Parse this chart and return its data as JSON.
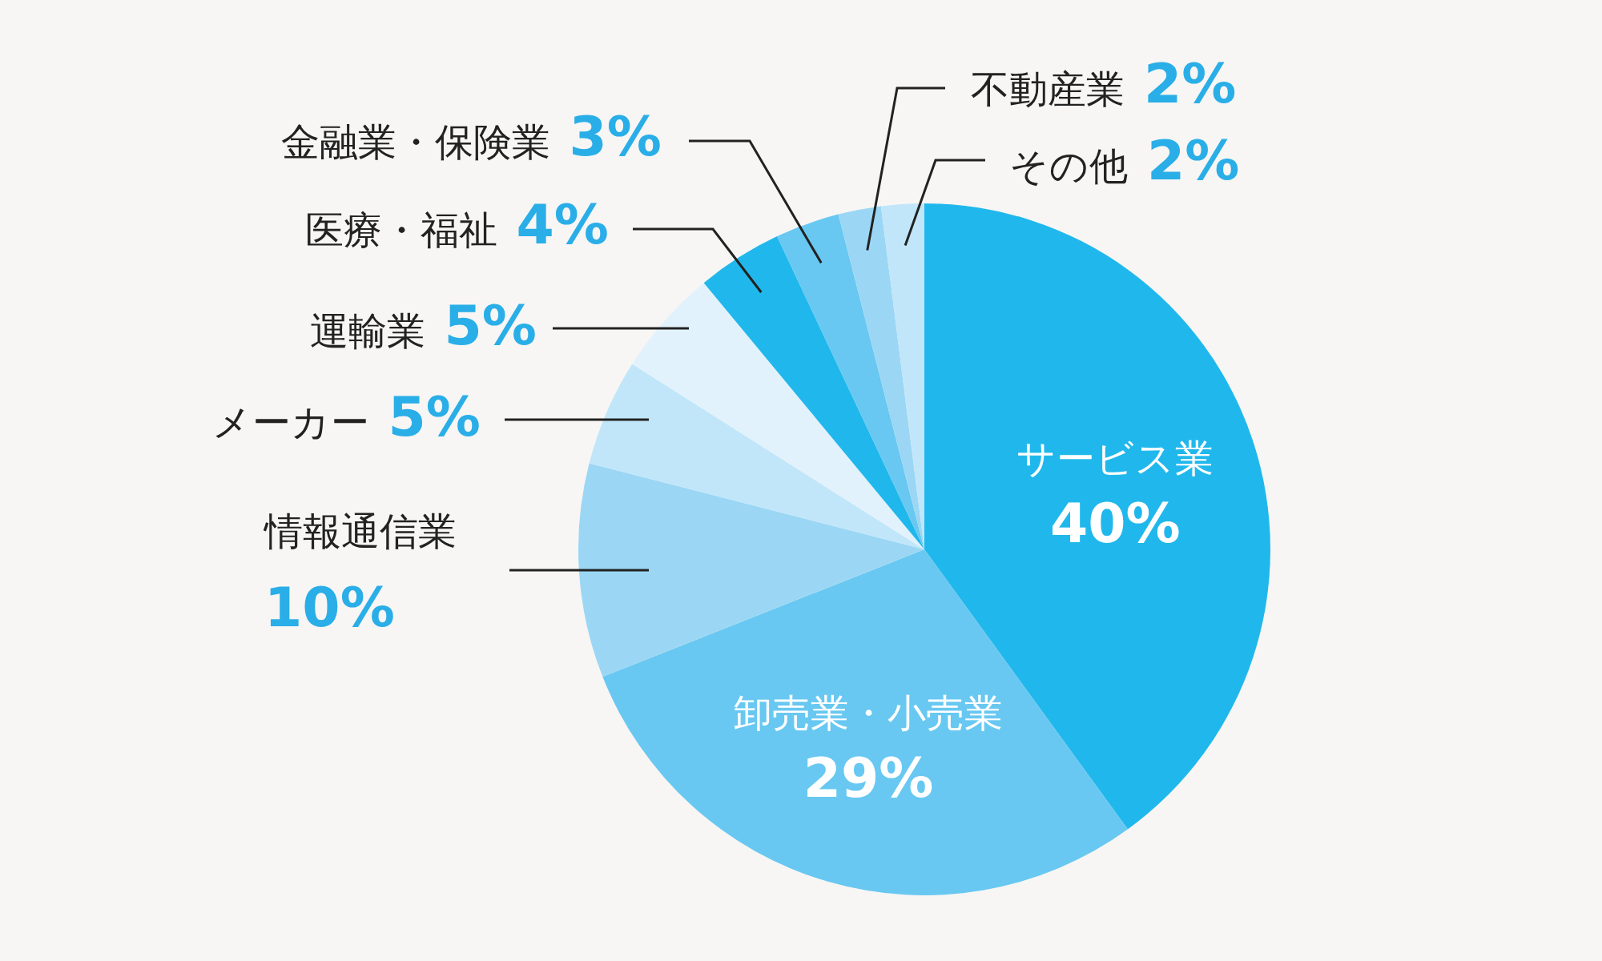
{
  "chart_data": {
    "type": "pie",
    "categories": [
      "サービス業",
      "卸売業・小売業",
      "情報通信業",
      "メーカー",
      "運輸業",
      "医療・福祉",
      "金融業・保険業",
      "不動産業",
      "その他"
    ],
    "values": [
      40,
      29,
      10,
      5,
      5,
      4,
      3,
      2,
      2
    ],
    "value_labels": [
      "40%",
      "29%",
      "10%",
      "5%",
      "5%",
      "4%",
      "3%",
      "2%",
      "2%"
    ],
    "colors": [
      "#20b8ec",
      "#68c8f1",
      "#9bd7f5",
      "#c1e6f9",
      "#e2f2fc",
      "#20b8ec",
      "#68c8f1",
      "#9bd7f5",
      "#c1e6f9"
    ]
  }
}
